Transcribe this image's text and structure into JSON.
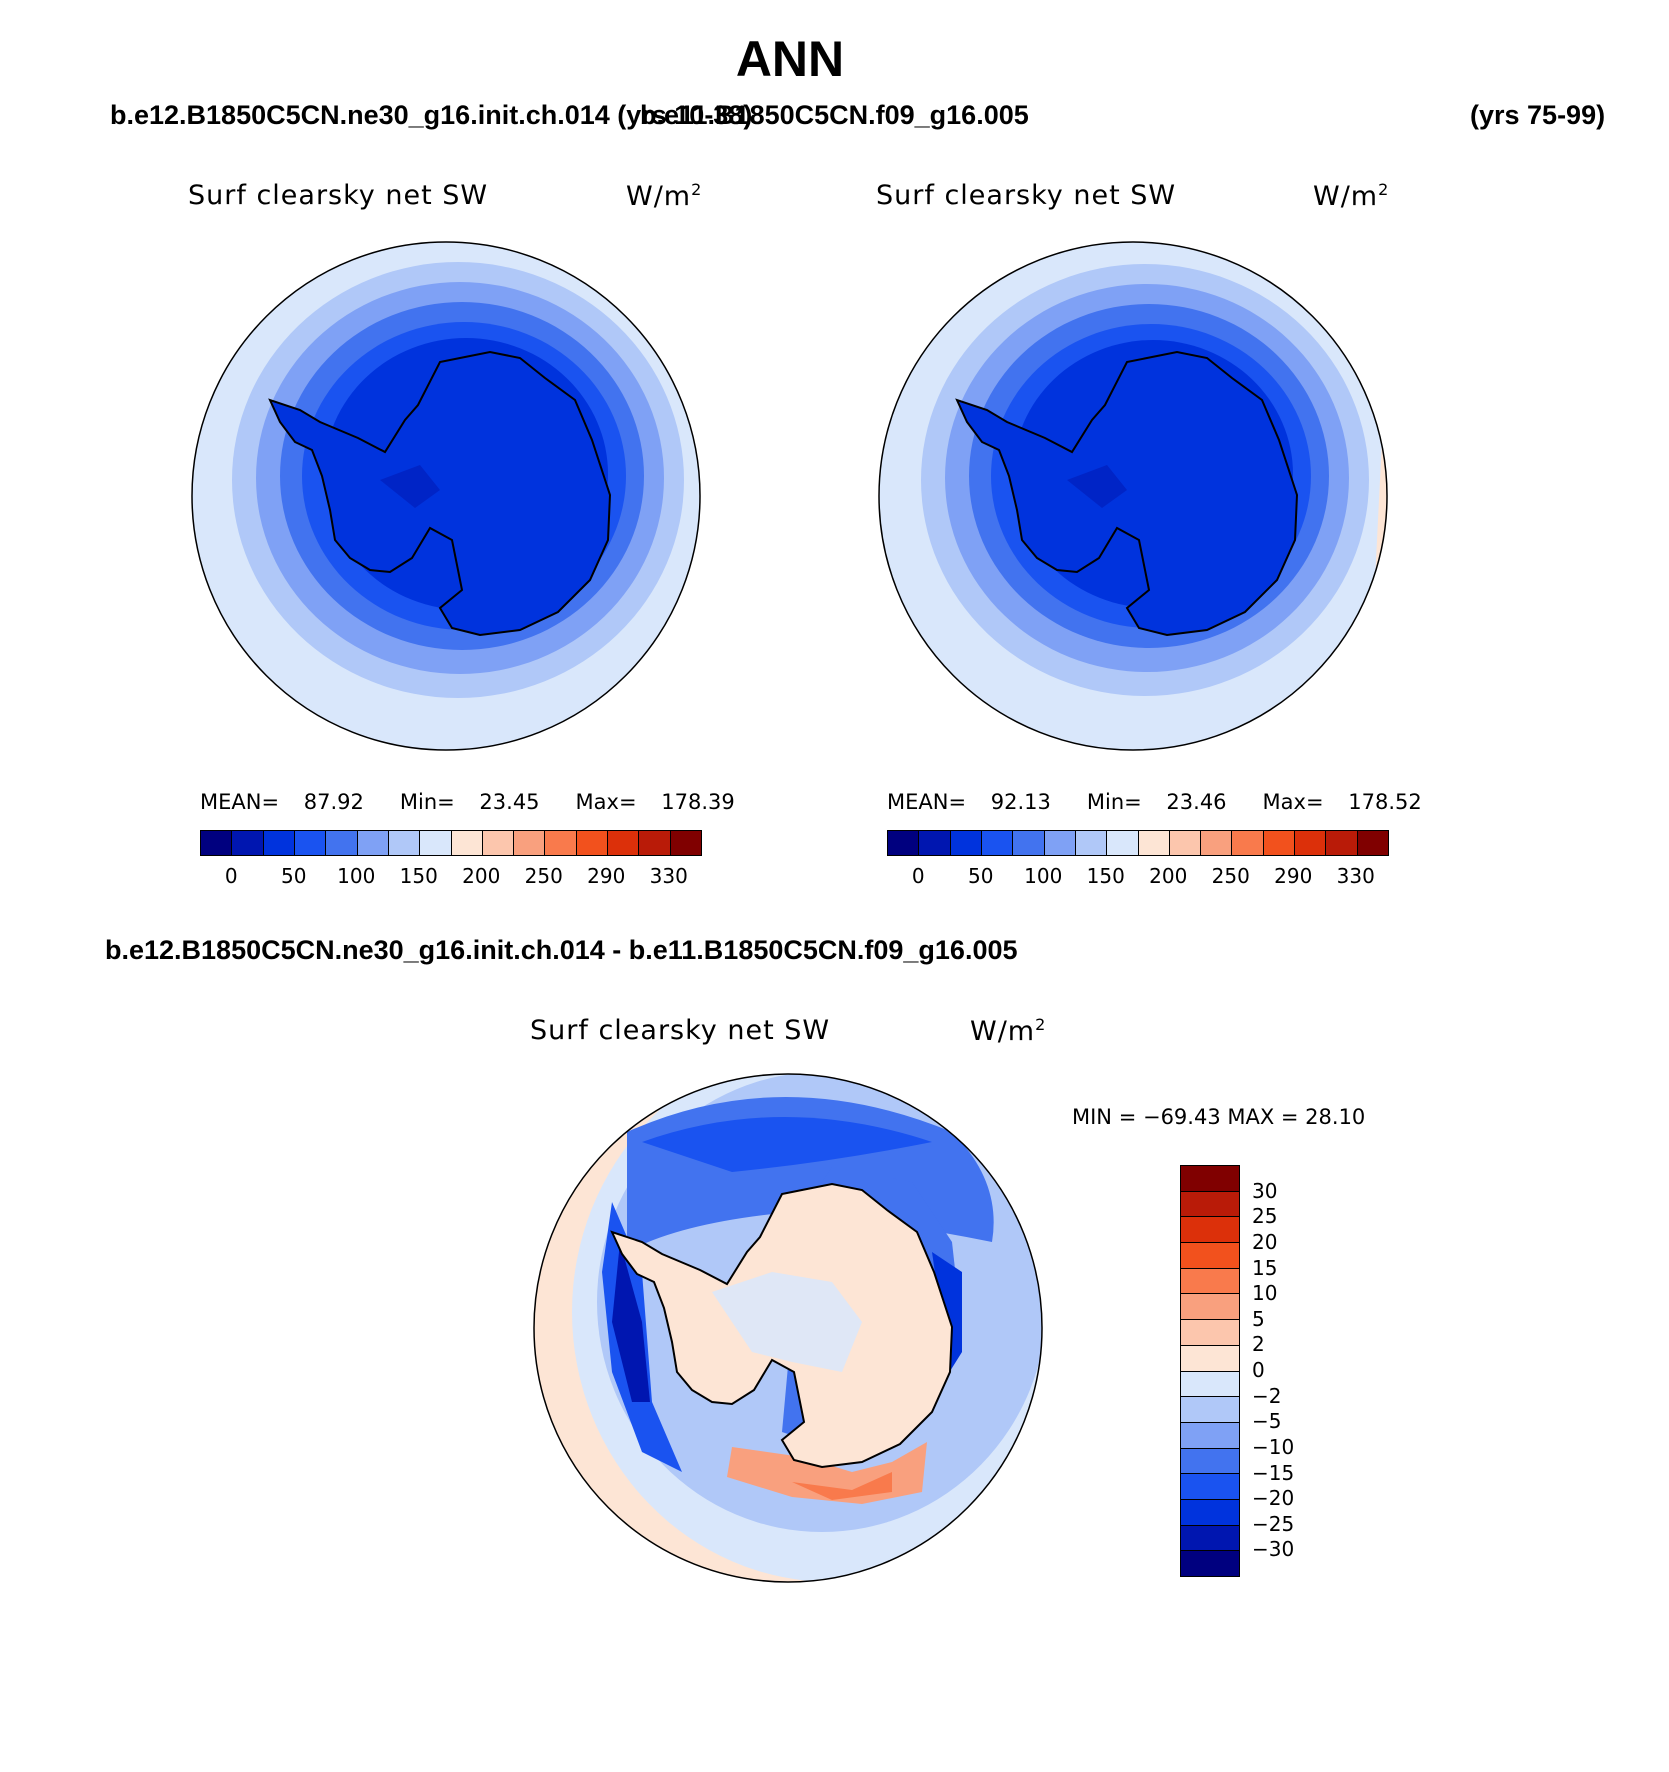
{
  "title": "ANN",
  "header": {
    "left_case": "b.e12.B1850C5CN.ne30_g16.init.ch.014 (yrs 10-38)",
    "right_case": "b.e11.B1850C5CN.f09_g16.005",
    "right_years": "(yrs 75-99)"
  },
  "panels": [
    {
      "variable": "Surf clearsky net SW",
      "units": "W/m",
      "units_exp": "2",
      "mean_label": "MEAN=",
      "mean": "87.92",
      "min_label": "Min=",
      "min": "23.45",
      "max_label": "Max=",
      "max": "178.39"
    },
    {
      "variable": "Surf clearsky net SW",
      "units": "W/m",
      "units_exp": "2",
      "mean_label": "MEAN=",
      "mean": "92.13",
      "min_label": "Min=",
      "min": "23.46",
      "max_label": "Max=",
      "max": "178.52"
    }
  ],
  "diff": {
    "case_label": "b.e12.B1850C5CN.ne30_g16.init.ch.014 - b.e11.B1850C5CN.f09_g16.005",
    "variable": "Surf clearsky net SW",
    "units": "W/m",
    "units_exp": "2",
    "minmax": "MIN = −69.43 MAX =   28.10"
  },
  "colorbar_main": {
    "colors": [
      "#00007f",
      "#0016b0",
      "#0033dd",
      "#1a53f0",
      "#4273ef",
      "#7fa1f5",
      "#b0c8f8",
      "#d9e7fb",
      "#fde5d5",
      "#fcc6ad",
      "#f9a07e",
      "#f97a4c",
      "#f2511d",
      "#dc300a",
      "#b91b08",
      "#800000"
    ],
    "ticks": [
      "0",
      "50",
      "100",
      "150",
      "200",
      "250",
      "290",
      "330"
    ]
  },
  "colorbar_diff": {
    "colors": [
      "#800000",
      "#b91b08",
      "#dc300a",
      "#f2511d",
      "#f97a4c",
      "#f9a07e",
      "#fcc6ad",
      "#fde5d5",
      "#d9e7fb",
      "#b0c8f8",
      "#7fa1f5",
      "#4273ef",
      "#1a53f0",
      "#0033dd",
      "#0016b0",
      "#00007f"
    ],
    "ticks": [
      "30",
      "25",
      "20",
      "15",
      "10",
      "5",
      "2",
      "0",
      "−2",
      "−5",
      "−10",
      "−15",
      "−20",
      "−25",
      "−30"
    ]
  },
  "chart_data": [
    {
      "type": "heatmap",
      "projection": "south polar stereographic",
      "variable": "Surf clearsky net SW",
      "units": "W/m2",
      "stats": {
        "mean": 87.92,
        "min": 23.45,
        "max": 178.39
      },
      "levels": [
        0,
        50,
        100,
        150,
        200,
        250,
        290,
        330
      ]
    },
    {
      "type": "heatmap",
      "projection": "south polar stereographic",
      "variable": "Surf clearsky net SW",
      "units": "W/m2",
      "stats": {
        "mean": 92.13,
        "min": 23.46,
        "max": 178.52
      },
      "levels": [
        0,
        50,
        100,
        150,
        200,
        250,
        290,
        330
      ]
    },
    {
      "type": "heatmap",
      "projection": "south polar stereographic",
      "variable": "Surf clearsky net SW",
      "units": "W/m2",
      "stats": {
        "min": -69.43,
        "max": 28.1
      },
      "levels": [
        -30,
        -25,
        -20,
        -15,
        -10,
        -5,
        -2,
        0,
        2,
        5,
        10,
        15,
        20,
        25,
        30
      ]
    }
  ]
}
